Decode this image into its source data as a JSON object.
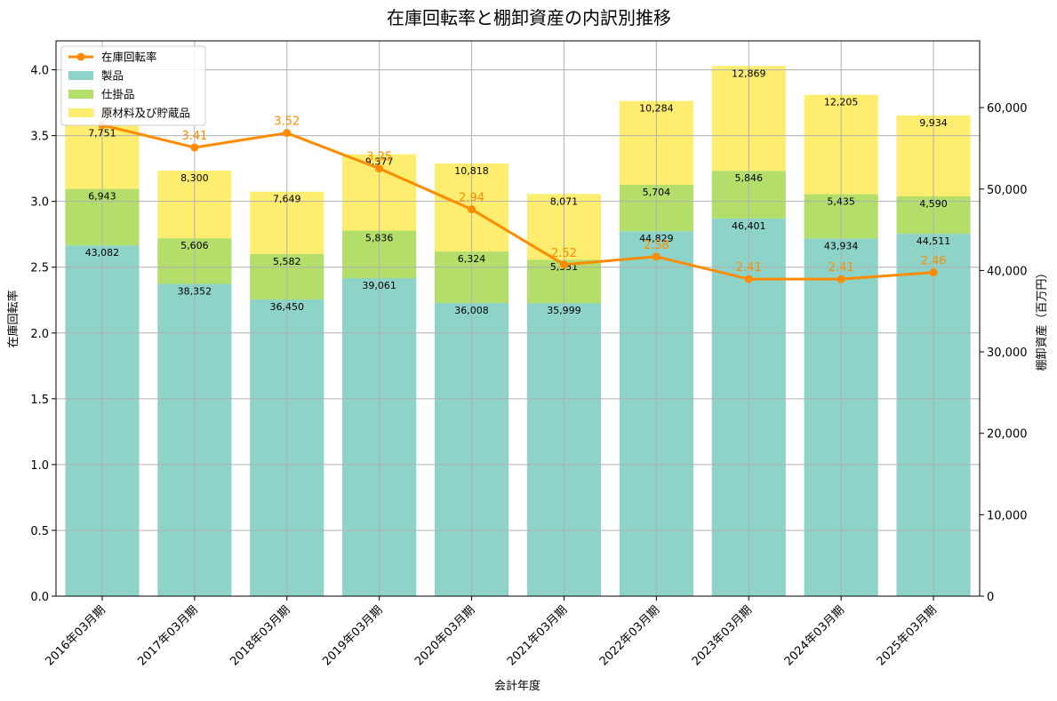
{
  "chart_data": {
    "type": "bar",
    "title": "在庫回転率と棚卸資産の内訳別推移",
    "xlabel": "会計年度",
    "ylabel_left": "在庫回転率",
    "ylabel_right": "棚卸資産（百万円）",
    "categories": [
      "2016年03月期",
      "2017年03月期",
      "2018年03月期",
      "2019年03月期",
      "2020年03月期",
      "2021年03月期",
      "2022年03月期",
      "2023年03月期",
      "2024年03月期",
      "2025年03月期"
    ],
    "series": [
      {
        "name": "製品",
        "axis": "right",
        "kind": "stacked-bar",
        "color": "#8dd3c7",
        "values": [
          43082,
          38352,
          36450,
          39061,
          36008,
          35999,
          44829,
          46401,
          43934,
          44511
        ]
      },
      {
        "name": "仕掛品",
        "axis": "right",
        "kind": "stacked-bar",
        "color": "#b3de69",
        "values": [
          6943,
          5606,
          5582,
          5836,
          6324,
          5331,
          5704,
          5846,
          5435,
          4590
        ]
      },
      {
        "name": "原材料及び貯蔵品",
        "axis": "right",
        "kind": "stacked-bar",
        "color": "#ffed6f",
        "values": [
          7751,
          8300,
          7649,
          9377,
          10818,
          8071,
          10284,
          12869,
          12205,
          9934
        ]
      },
      {
        "name": "在庫回転率",
        "axis": "left",
        "kind": "line",
        "color": "#ff8c00",
        "values": [
          3.58,
          3.41,
          3.52,
          3.25,
          2.94,
          2.52,
          2.58,
          2.41,
          2.41,
          2.46
        ]
      }
    ],
    "ylim_left": [
      0,
      4.22
    ],
    "ylim_right": [
      0,
      68200
    ],
    "yticks_left": [
      0.0,
      0.5,
      1.0,
      1.5,
      2.0,
      2.5,
      3.0,
      3.5,
      4.0
    ],
    "yticks_right": [
      0,
      10000,
      20000,
      30000,
      40000,
      50000,
      60000
    ],
    "legend": {
      "position": "top-left",
      "order": [
        "在庫回転率",
        "製品",
        "仕掛品",
        "原材料及び貯蔵品"
      ]
    },
    "grid": true
  }
}
